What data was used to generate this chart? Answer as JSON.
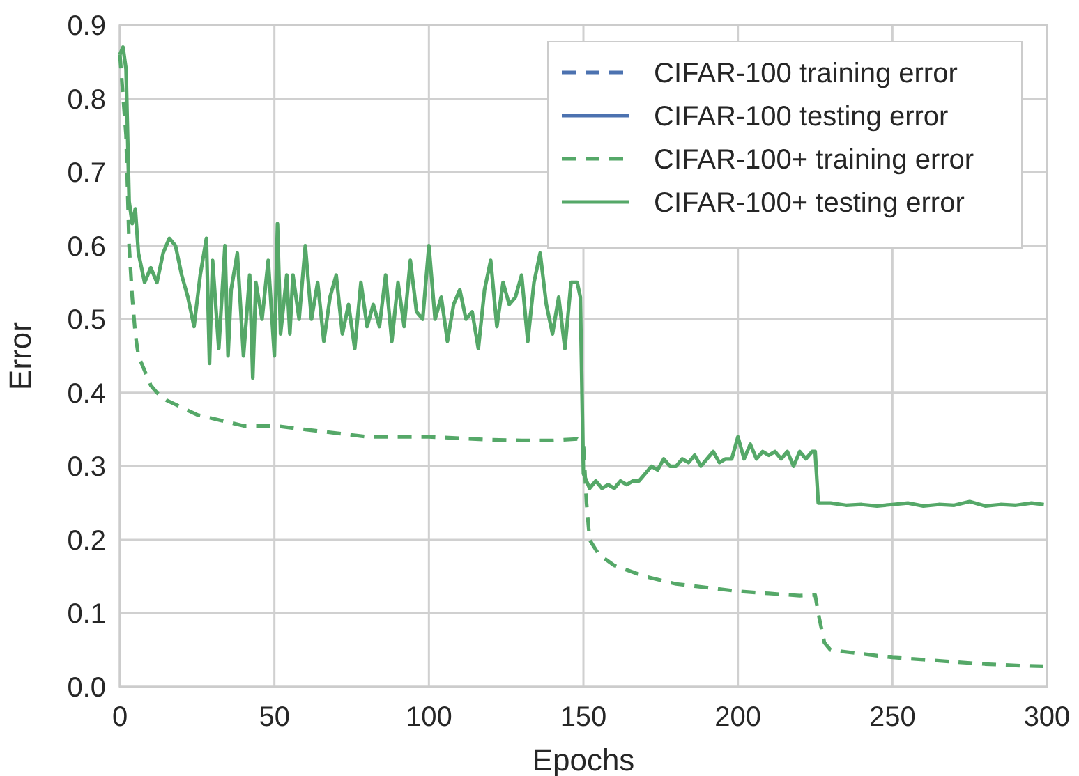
{
  "chart_data": {
    "type": "line",
    "xlabel": "Epochs",
    "ylabel": "Error",
    "xlim": [
      0,
      300
    ],
    "xticks": [
      0,
      50,
      100,
      150,
      200,
      250,
      300
    ],
    "ylim": [
      0,
      0.9
    ],
    "yticks": [
      {
        "value": 0,
        "label": "0.0"
      },
      0.1,
      0.2,
      0.3,
      0.4,
      0.5,
      0.6,
      0.7,
      0.8,
      0.9
    ],
    "grid": true,
    "legend": "top right",
    "x": [
      0,
      1,
      2,
      3,
      4,
      5,
      6,
      8,
      10,
      12,
      14,
      16,
      18,
      20,
      22,
      24,
      26,
      28,
      29,
      30,
      32,
      34,
      35,
      36,
      38,
      40,
      42,
      43,
      44,
      46,
      48,
      50,
      51,
      52,
      54,
      55,
      56,
      58,
      60,
      62,
      64,
      66,
      68,
      70,
      72,
      74,
      76,
      78,
      80,
      82,
      84,
      86,
      88,
      90,
      92,
      94,
      96,
      98,
      100,
      102,
      104,
      106,
      108,
      110,
      112,
      114,
      116,
      118,
      120,
      122,
      124,
      126,
      128,
      130,
      132,
      134,
      136,
      138,
      140,
      142,
      144,
      146,
      148,
      149,
      150,
      151,
      152,
      154,
      156,
      158,
      160,
      162,
      164,
      166,
      168,
      170,
      172,
      174,
      176,
      178,
      180,
      182,
      184,
      186,
      188,
      190,
      192,
      194,
      196,
      198,
      200,
      202,
      204,
      206,
      208,
      210,
      212,
      214,
      216,
      218,
      220,
      222,
      224,
      225,
      226,
      228,
      230,
      235,
      240,
      245,
      250,
      255,
      260,
      265,
      270,
      275,
      280,
      285,
      290,
      295,
      299
    ],
    "series": [
      {
        "name": "CIFAR-100 training error",
        "color": "#4c72b0",
        "line_style": "dashed",
        "values": [
          null,
          null,
          null,
          null,
          null,
          null,
          null,
          null,
          null,
          null,
          null,
          null,
          null,
          null,
          null,
          null,
          null,
          null,
          null,
          null,
          null,
          null,
          null,
          null,
          null,
          null,
          null,
          null,
          null,
          null,
          null,
          null,
          null,
          null,
          null,
          null,
          null,
          null,
          null,
          null,
          null,
          null,
          null,
          null,
          null,
          null,
          null,
          null,
          null,
          null,
          null,
          null,
          null,
          null,
          null,
          null,
          null,
          null,
          null,
          null,
          null,
          null,
          null,
          null,
          null,
          null,
          null,
          null,
          null,
          null,
          null,
          null,
          null,
          null,
          null,
          null,
          null,
          null,
          null,
          null,
          null,
          null,
          null,
          null,
          null,
          null,
          null,
          null,
          null,
          null,
          null,
          null,
          null,
          null,
          null,
          null,
          null,
          null,
          null,
          null,
          null,
          null,
          null,
          null,
          null,
          null,
          null,
          null,
          null,
          null,
          null,
          null,
          null,
          null,
          null,
          null,
          null,
          null,
          null,
          null,
          null,
          null,
          null,
          null,
          null,
          null,
          null,
          null,
          null,
          null,
          null,
          null,
          null,
          null,
          null,
          null,
          null,
          null,
          null,
          null,
          null
        ]
      },
      {
        "name": "CIFAR-100 testing error",
        "color": "#4c72b0",
        "line_style": "solid",
        "values": [
          null,
          null,
          null,
          null,
          null,
          null,
          null,
          null,
          null,
          null,
          null,
          null,
          null,
          null,
          null,
          null,
          null,
          null,
          null,
          null,
          null,
          null,
          null,
          null,
          null,
          null,
          null,
          null,
          null,
          null,
          null,
          null,
          null,
          null,
          null,
          null,
          null,
          null,
          null,
          null,
          null,
          null,
          null,
          null,
          null,
          null,
          null,
          null,
          null,
          null,
          null,
          null,
          null,
          null,
          null,
          null,
          null,
          null,
          null,
          null,
          null,
          null,
          null,
          null,
          null,
          null,
          null,
          null,
          null,
          null,
          null,
          null,
          null,
          null,
          null,
          null,
          null,
          null,
          null,
          null,
          null,
          null,
          null,
          null,
          null,
          null,
          null,
          null,
          null,
          null,
          null,
          null,
          null,
          null,
          null,
          null,
          null,
          null,
          null,
          null,
          null,
          null,
          null,
          null,
          null,
          null,
          null,
          null,
          null,
          null,
          null,
          null,
          null,
          null,
          null,
          null,
          null,
          null,
          null,
          null,
          null,
          null,
          null,
          null,
          null,
          null,
          null,
          null,
          null,
          null,
          null,
          null,
          null,
          null,
          null,
          null,
          null,
          null,
          null,
          null,
          null
        ]
      },
      {
        "name": "CIFAR-100+ training error",
        "color": "#55a868",
        "line_style": "dashed",
        "x": [
          0,
          2,
          3,
          4,
          5,
          6,
          8,
          10,
          12,
          15,
          20,
          25,
          30,
          40,
          50,
          60,
          70,
          80,
          90,
          100,
          110,
          120,
          130,
          140,
          148,
          150,
          151,
          152,
          155,
          160,
          170,
          180,
          190,
          200,
          210,
          220,
          225,
          226,
          228,
          230,
          240,
          250,
          260,
          270,
          280,
          290,
          299
        ],
        "values": [
          0.86,
          0.75,
          0.6,
          0.53,
          0.48,
          0.45,
          0.43,
          0.41,
          0.4,
          0.39,
          0.38,
          0.37,
          0.365,
          0.355,
          0.355,
          0.35,
          0.345,
          0.34,
          0.34,
          0.34,
          0.338,
          0.336,
          0.335,
          0.335,
          0.337,
          0.33,
          0.25,
          0.2,
          0.18,
          0.165,
          0.15,
          0.14,
          0.135,
          0.13,
          0.127,
          0.124,
          0.125,
          0.1,
          0.06,
          0.05,
          0.045,
          0.04,
          0.037,
          0.034,
          0.031,
          0.029,
          0.028
        ]
      },
      {
        "name": "CIFAR-100+ testing error",
        "color": "#55a868",
        "line_style": "solid",
        "values": [
          0.86,
          0.87,
          0.84,
          0.66,
          0.63,
          0.65,
          0.59,
          0.55,
          0.57,
          0.55,
          0.59,
          0.61,
          0.6,
          0.56,
          0.53,
          0.49,
          0.56,
          0.61,
          0.44,
          0.58,
          0.46,
          0.6,
          0.45,
          0.54,
          0.59,
          0.45,
          0.56,
          0.42,
          0.55,
          0.5,
          0.58,
          0.45,
          0.63,
          0.48,
          0.56,
          0.48,
          0.56,
          0.5,
          0.6,
          0.5,
          0.55,
          0.47,
          0.53,
          0.56,
          0.48,
          0.52,
          0.46,
          0.55,
          0.49,
          0.52,
          0.49,
          0.56,
          0.47,
          0.55,
          0.49,
          0.58,
          0.51,
          0.5,
          0.6,
          0.5,
          0.53,
          0.47,
          0.52,
          0.54,
          0.5,
          0.51,
          0.46,
          0.54,
          0.58,
          0.49,
          0.55,
          0.52,
          0.53,
          0.56,
          0.47,
          0.55,
          0.59,
          0.52,
          0.48,
          0.53,
          0.46,
          0.55,
          0.55,
          0.53,
          0.29,
          0.28,
          0.27,
          0.28,
          0.27,
          0.275,
          0.27,
          0.28,
          0.275,
          0.28,
          0.28,
          0.29,
          0.3,
          0.295,
          0.31,
          0.3,
          0.3,
          0.31,
          0.305,
          0.315,
          0.3,
          0.31,
          0.32,
          0.305,
          0.31,
          0.31,
          0.34,
          0.31,
          0.33,
          0.31,
          0.32,
          0.315,
          0.32,
          0.31,
          0.32,
          0.3,
          0.32,
          0.31,
          0.32,
          0.32,
          0.25,
          0.25,
          0.25,
          0.247,
          0.248,
          0.246,
          0.248,
          0.25,
          0.246,
          0.248,
          0.247,
          0.252,
          0.246,
          0.248,
          0.247,
          0.25,
          0.248
        ]
      }
    ]
  }
}
